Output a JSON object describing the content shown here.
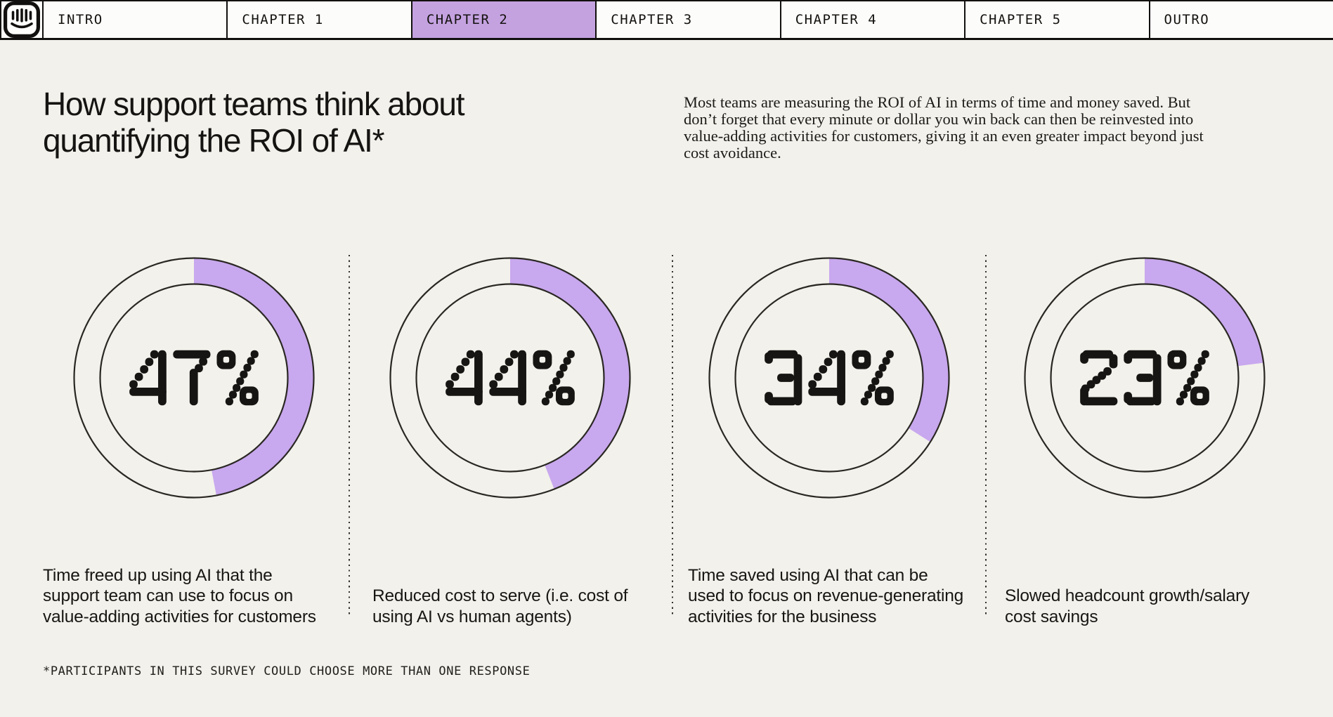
{
  "page": {
    "background": "#f2f1eb",
    "text_color": "#1b1917"
  },
  "nav": {
    "logo_icon": "intercom-logo",
    "active_tab": "CHAPTER 2",
    "active_tab_bg": "#c4a2e0",
    "tabs": [
      {
        "label": "INTRO",
        "active": false
      },
      {
        "label": "CHAPTER 1",
        "active": false
      },
      {
        "label": "CHAPTER 2",
        "active": true
      },
      {
        "label": "CHAPTER 3",
        "active": false
      },
      {
        "label": "CHAPTER 4",
        "active": false
      },
      {
        "label": "CHAPTER 5",
        "active": false
      },
      {
        "label": "OUTRO",
        "active": false
      }
    ]
  },
  "header": {
    "title_lines": [
      "How support teams think about",
      "quantifying the ROI of AI*"
    ],
    "intro_lines": [
      "Most teams are measuring the ROI of AI in terms of time and money saved. But",
      "don’t forget that every minute or dollar you win back can then be reinvested into",
      "value-adding activities for customers, giving it an even greater impact beyond just",
      "cost avoidance."
    ]
  },
  "chart_data": {
    "type": "donut",
    "unit": "percent",
    "start_angle": "top",
    "direction": "clockwise",
    "arc_color": "#c8a8ee",
    "ring_color": "#2a2723",
    "value_color": "#171513",
    "series": [
      {
        "value": 47,
        "display": "47%",
        "label_lines": [
          "Time freed up using AI that the",
          "support team can use to focus on",
          "value-adding activities for customers"
        ]
      },
      {
        "value": 44,
        "display": "44%",
        "label_lines": [
          "Reduced cost to serve (i.e. cost of",
          "using AI vs human agents)"
        ]
      },
      {
        "value": 34,
        "display": "34%",
        "label_lines": [
          "Time saved using AI that can be",
          "used to focus on revenue-generating",
          "activities for the business"
        ]
      },
      {
        "value": 23,
        "display": "23%",
        "label_lines": [
          "Slowed headcount growth/salary",
          "cost savings"
        ]
      }
    ]
  },
  "footnote": {
    "text": "*PARTICIPANTS IN THIS SURVEY COULD CHOOSE MORE THAN ONE RESPONSE"
  }
}
